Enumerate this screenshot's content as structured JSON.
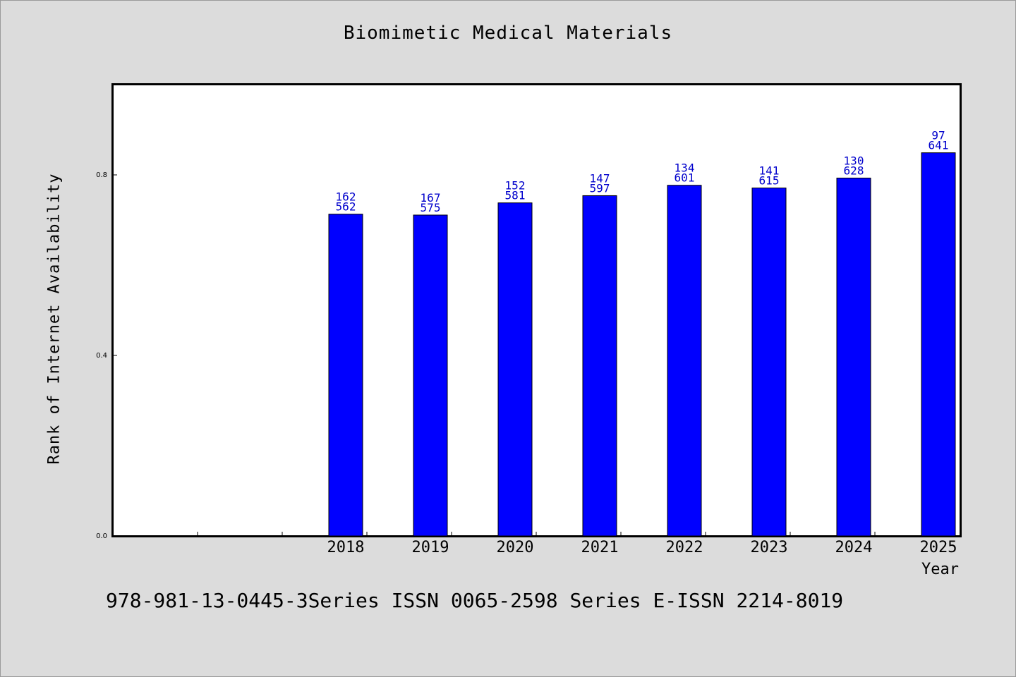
{
  "chart_data": {
    "type": "bar",
    "title": "Biomimetic Medical Materials",
    "xlabel": "Year",
    "ylabel": "Rank of Internet Availability",
    "ylim": [
      0,
      1
    ],
    "yticks": [
      "0.0",
      "0.4",
      "0.8"
    ],
    "categories": [
      "",
      "",
      "2018",
      "2019",
      "2020",
      "2021",
      "2022",
      "2023",
      "2024",
      "2025"
    ],
    "series": [
      {
        "values": [
          null,
          null,
          0.713,
          0.711,
          0.738,
          0.754,
          0.777,
          0.771,
          0.793,
          0.849
        ],
        "labels_top": [
          "",
          "",
          "162",
          "167",
          "152",
          "147",
          "134",
          "141",
          "130",
          "97"
        ],
        "labels_bottom": [
          "",
          "",
          "562",
          "575",
          "581",
          "597",
          "601",
          "615",
          "628",
          "641"
        ]
      }
    ],
    "bar_color": "#0000ff",
    "label_color": "#0000cc",
    "grid": false
  },
  "footer": "978-981-13-0445-3Series ISSN 0065-2598 Series E-ISSN 2214-8019"
}
